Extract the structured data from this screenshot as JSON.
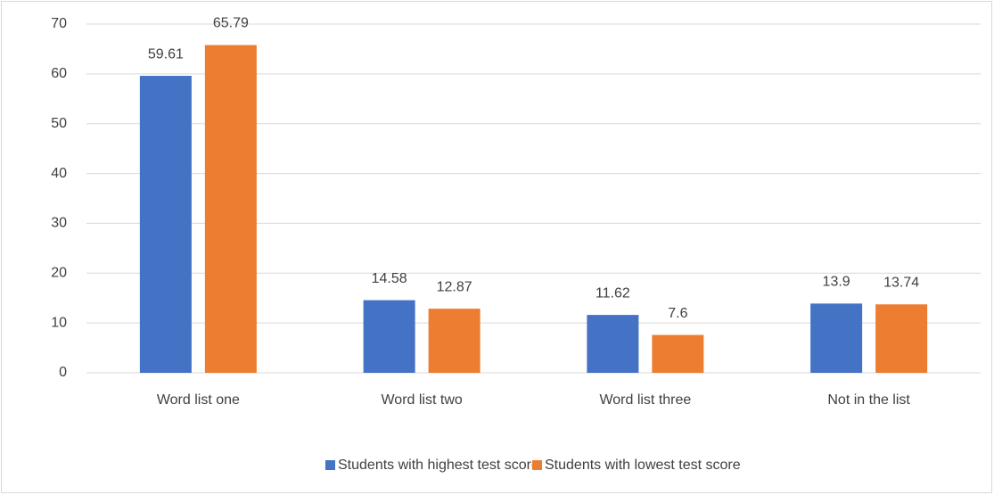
{
  "chart_data": {
    "type": "bar",
    "categories": [
      "Word list one",
      "Word list two",
      "Word list three",
      "Not in the list"
    ],
    "series": [
      {
        "name": "Students with highest test score",
        "color": "#4472c4",
        "values": [
          59.61,
          14.58,
          11.62,
          13.9
        ]
      },
      {
        "name": "Students with lowest test score",
        "color": "#ed7d31",
        "values": [
          65.79,
          12.87,
          7.6,
          13.74
        ]
      }
    ],
    "ylim": [
      0,
      70
    ],
    "yticks": [
      0,
      10,
      20,
      30,
      40,
      50,
      60,
      70
    ],
    "grid": true,
    "legend": "bottom"
  }
}
